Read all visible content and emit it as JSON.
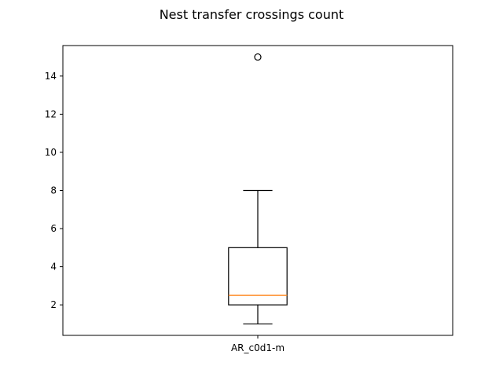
{
  "chart_data": {
    "type": "box",
    "title": "Nest transfer crossings count",
    "xlabel": "",
    "ylabel": "",
    "categories": [
      "AR_c0d1-m"
    ],
    "boxes": [
      {
        "category": "AR_c0d1-m",
        "whisker_low": 1,
        "q1": 2,
        "median": 2.5,
        "q3": 5,
        "whisker_high": 8,
        "outliers": [
          15
        ]
      }
    ],
    "ylim": [
      0.4,
      15.6
    ],
    "yticks": [
      2,
      4,
      6,
      8,
      10,
      12,
      14
    ],
    "grid": false,
    "colors": {
      "box": "#000000",
      "median": "#ff7f0e",
      "whisker": "#000000",
      "outlier": "#000000"
    }
  }
}
